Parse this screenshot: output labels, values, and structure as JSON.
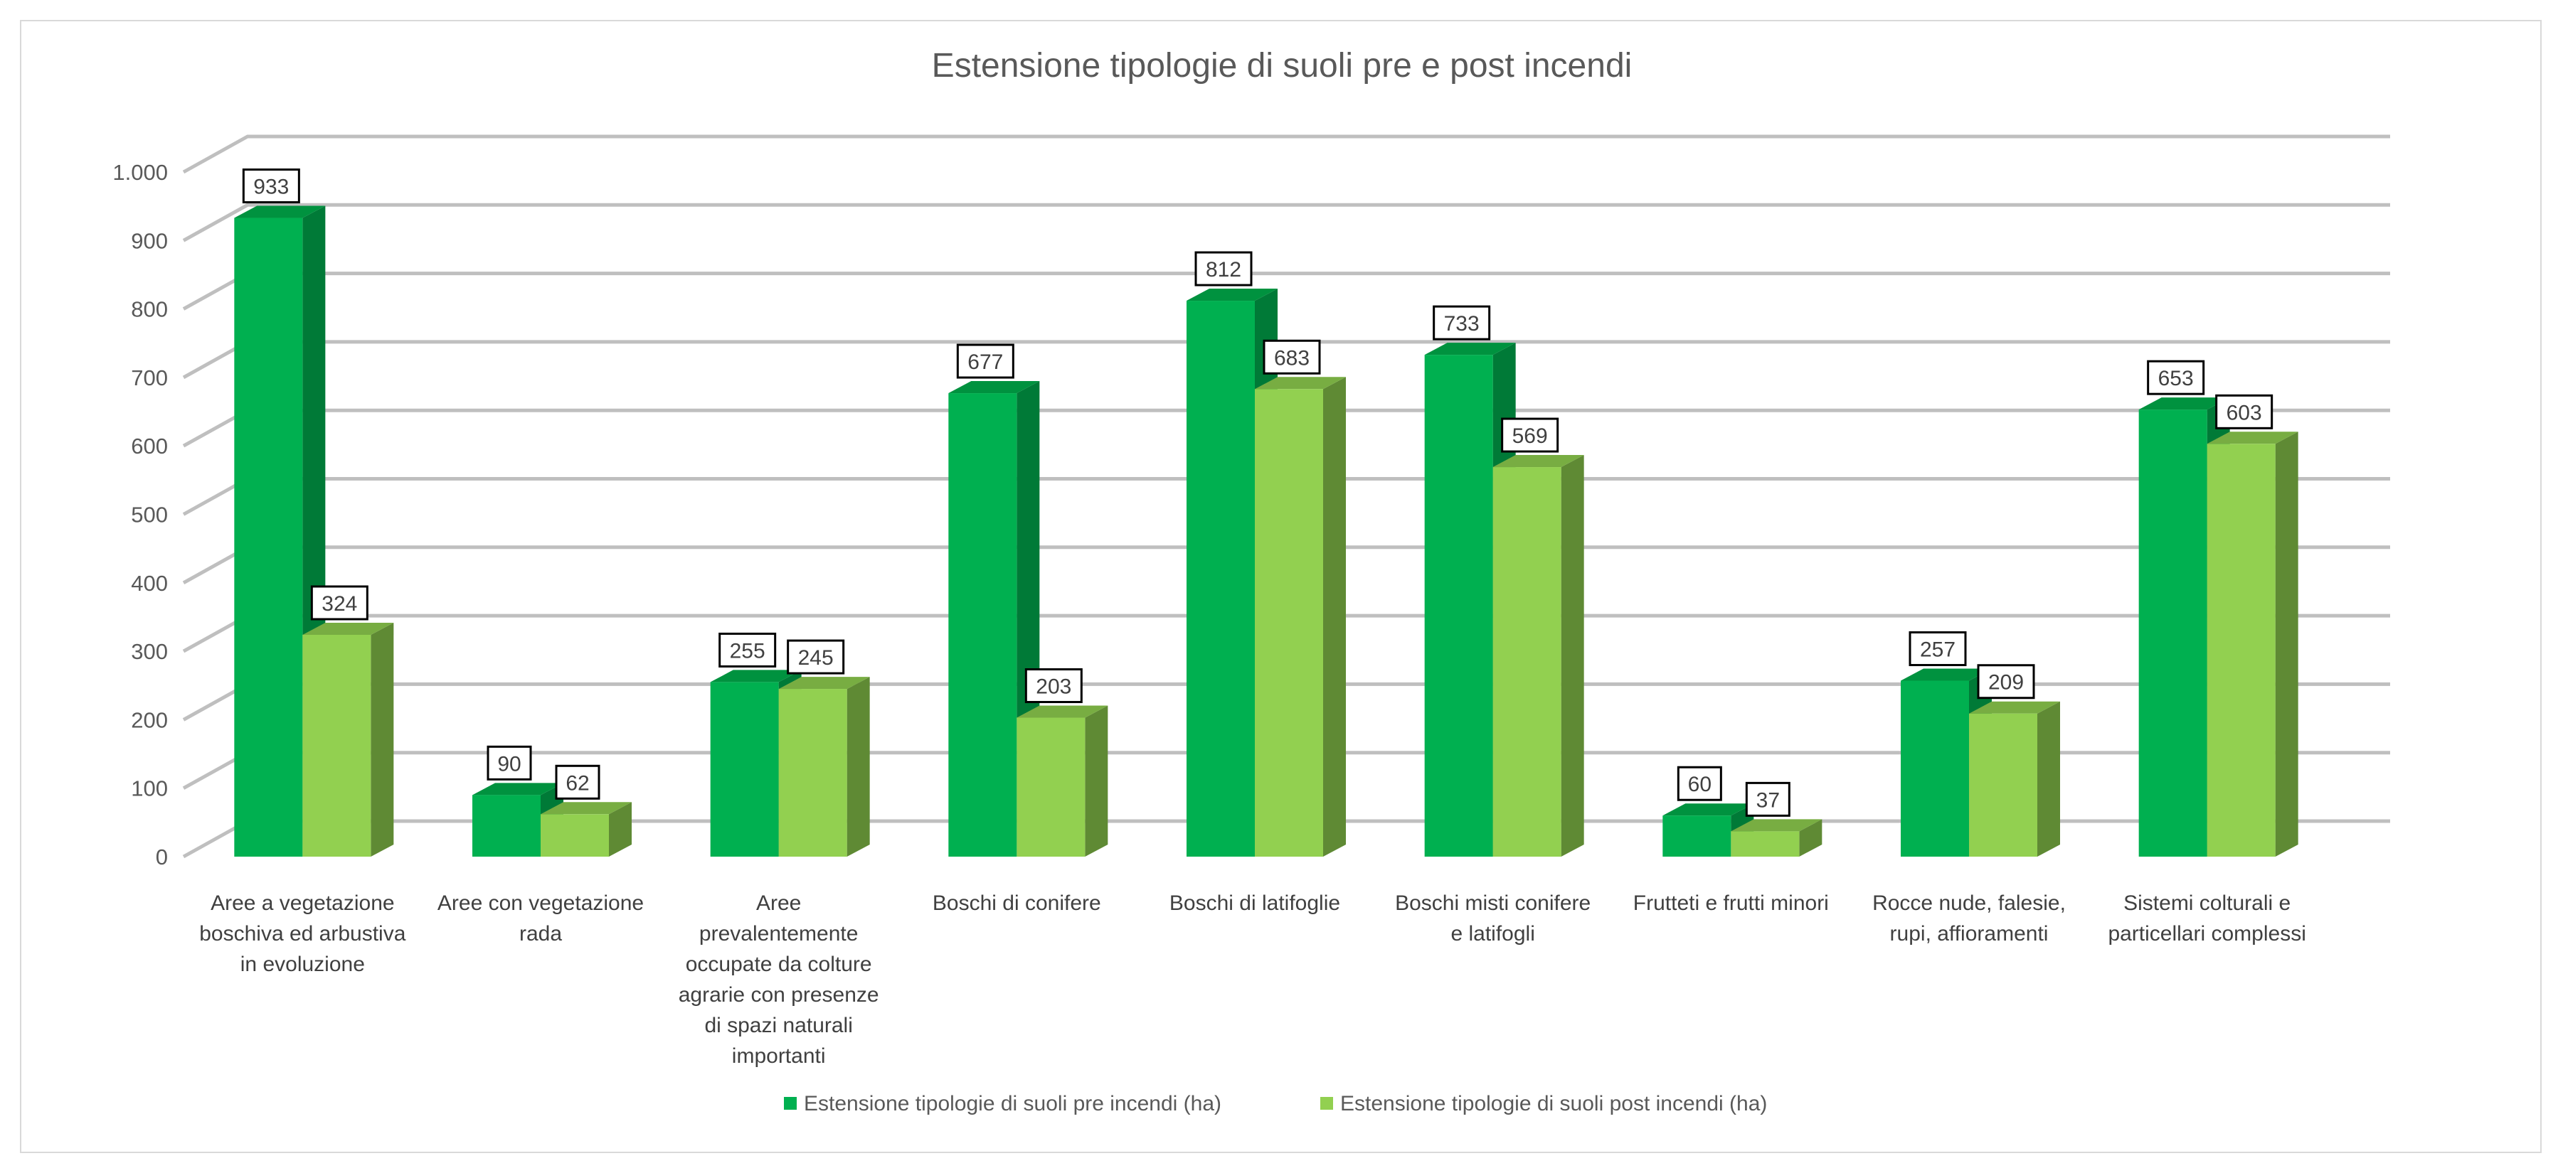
{
  "chart_data": {
    "type": "bar",
    "title": "Estensione tipologie di suoli pre e post incendi",
    "xlabel": "",
    "ylabel": "",
    "ylim": [
      0,
      1000
    ],
    "yticks": [
      {
        "value": 0,
        "label": "0"
      },
      {
        "value": 100,
        "label": "100"
      },
      {
        "value": 200,
        "label": "200"
      },
      {
        "value": 300,
        "label": "300"
      },
      {
        "value": 400,
        "label": "400"
      },
      {
        "value": 500,
        "label": "500"
      },
      {
        "value": 600,
        "label": "600"
      },
      {
        "value": 700,
        "label": "700"
      },
      {
        "value": 800,
        "label": "800"
      },
      {
        "value": 900,
        "label": "900"
      },
      {
        "value": 1000,
        "label": "1.000"
      }
    ],
    "grid": true,
    "legend_position": "bottom",
    "categories": [
      [
        "Aree a vegetazione",
        "boschiva ed arbustiva",
        "in evoluzione"
      ],
      [
        "Aree con vegetazione",
        "rada"
      ],
      [
        "Aree",
        "prevalentemente",
        "occupate da colture",
        "agrarie con presenze",
        "di spazi naturali",
        "importanti"
      ],
      [
        "Boschi di conifere"
      ],
      [
        "Boschi di latifoglie"
      ],
      [
        "Boschi misti conifere",
        "e latifogli"
      ],
      [
        "Frutteti e frutti minori"
      ],
      [
        "Rocce nude, falesie,",
        "rupi, affioramenti"
      ],
      [
        "Sistemi colturali e",
        "particellari complessi"
      ]
    ],
    "series": [
      {
        "name": "Estensione tipologie di suoli pre incendi (ha)",
        "color": "#00b050",
        "side_color": "#007a37",
        "top_color": "#00923f",
        "values": [
          933,
          90,
          255,
          677,
          812,
          733,
          60,
          257,
          653
        ]
      },
      {
        "name": "Estensione tipologie di suoli post incendi (ha)",
        "color": "#92d050",
        "side_color": "#5f8a34",
        "top_color": "#78ad42",
        "values": [
          324,
          62,
          245,
          203,
          683,
          569,
          37,
          209,
          603
        ]
      }
    ]
  }
}
